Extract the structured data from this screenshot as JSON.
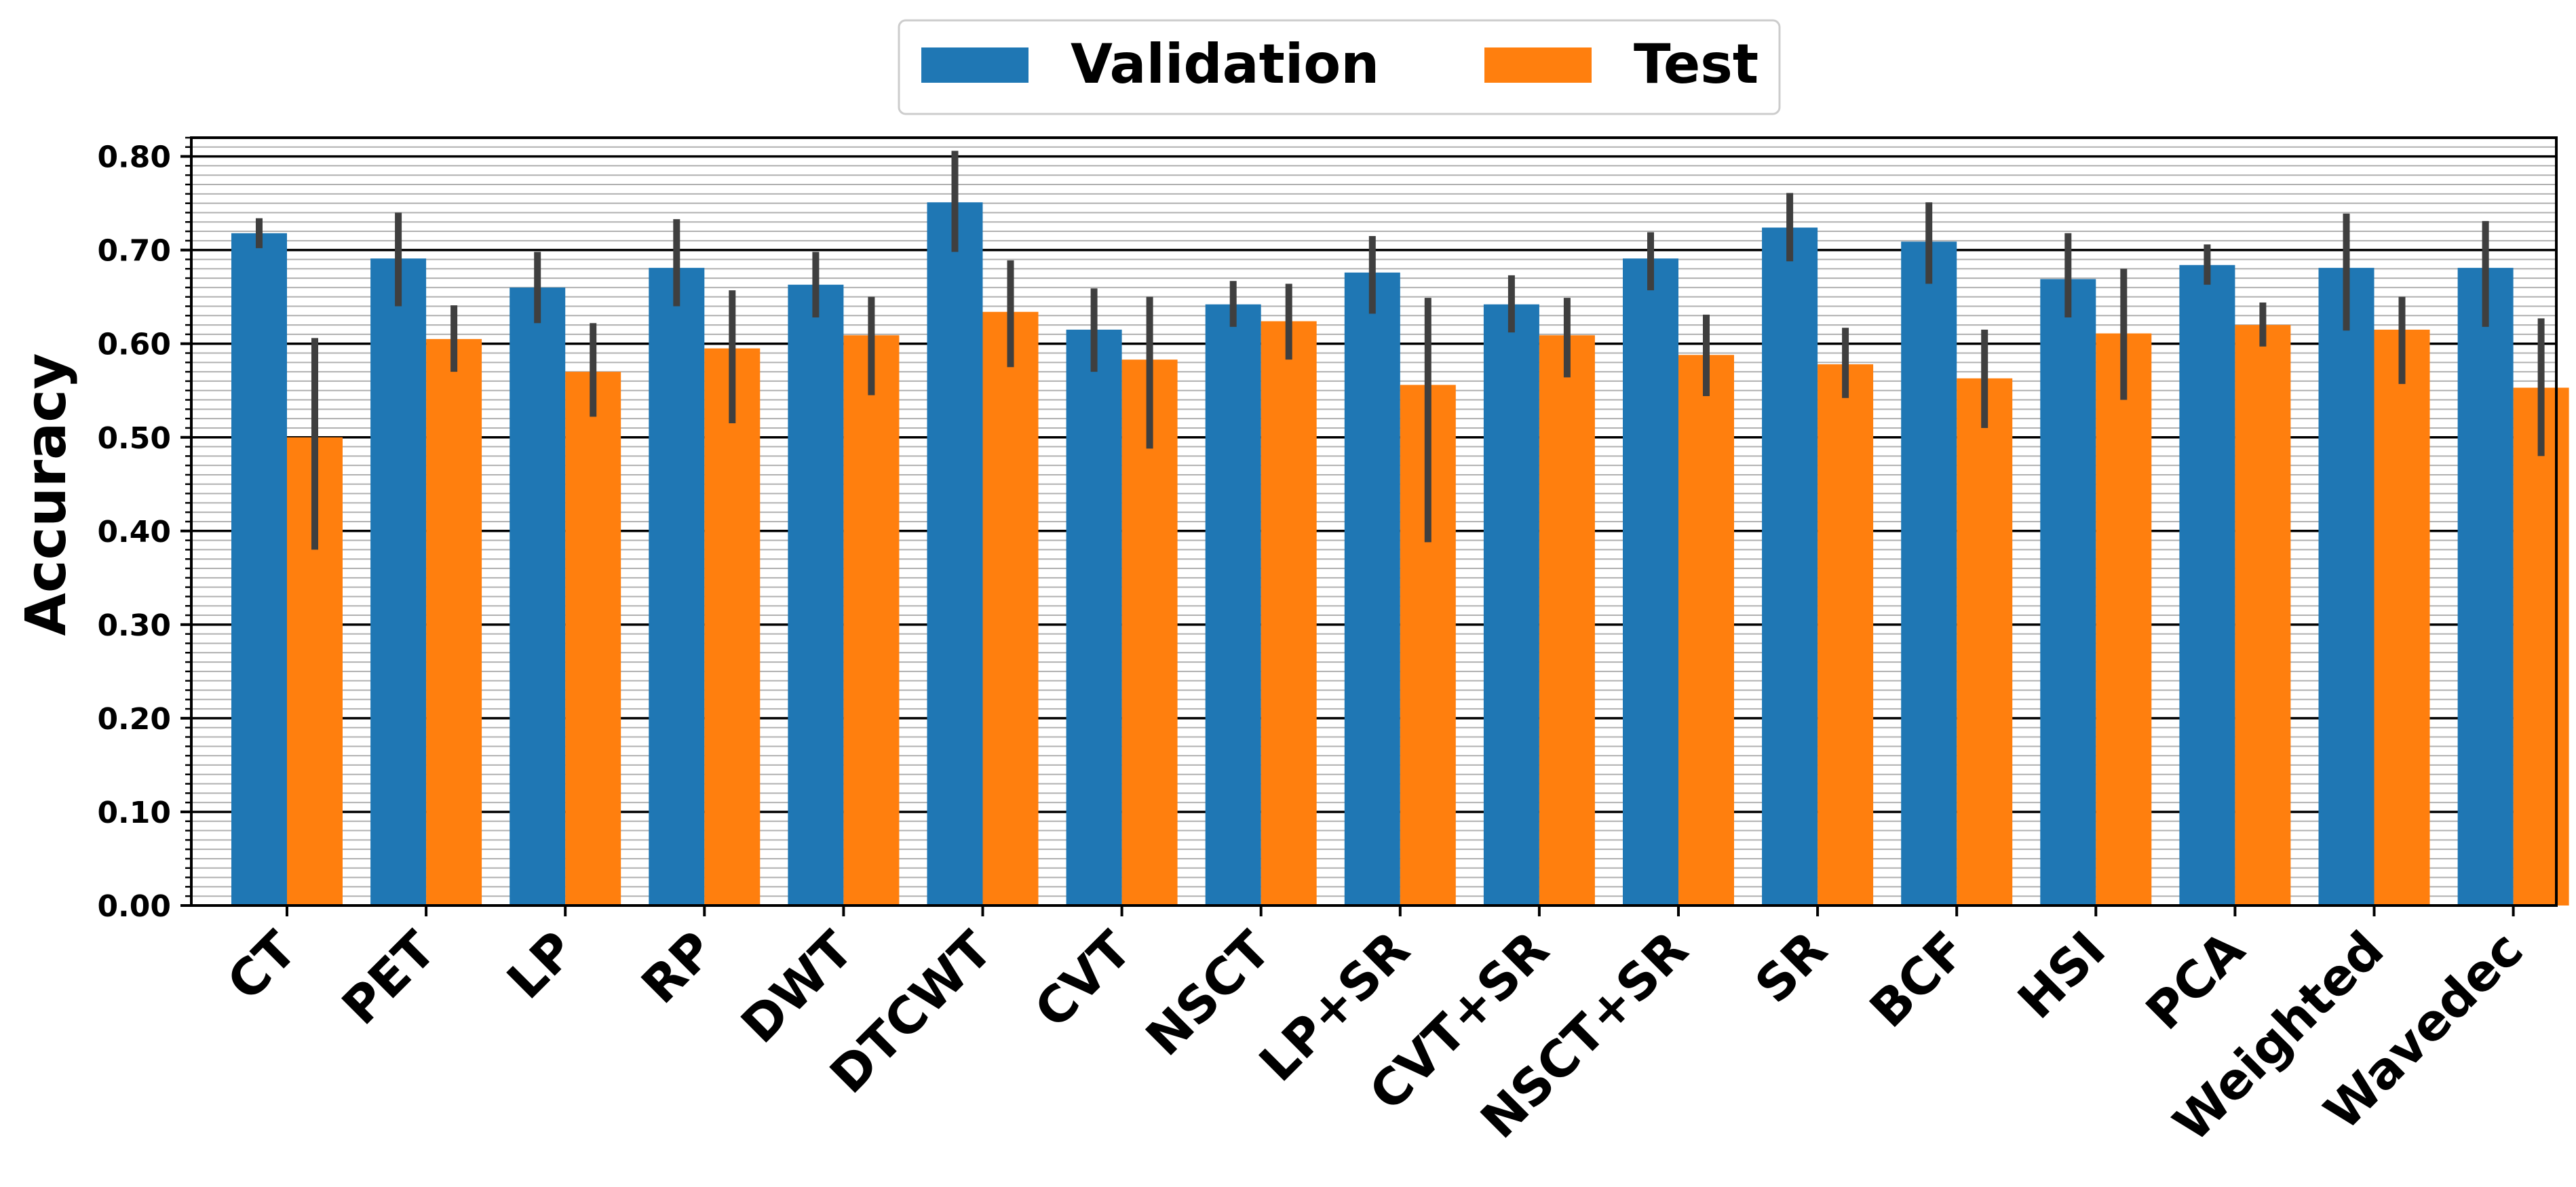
{
  "chart_data": {
    "type": "bar",
    "title": "",
    "xlabel": "",
    "ylabel": "Accuracy",
    "ylim": [
      0,
      0.82
    ],
    "yticks": [
      "0.00",
      "0.10",
      "0.20",
      "0.30",
      "0.40",
      "0.50",
      "0.60",
      "0.70",
      "0.80"
    ],
    "grid": "horizontal major and minor",
    "legend_position": "top-center",
    "categories": [
      "CT",
      "PET",
      "LP",
      "RP",
      "DWT",
      "DTCWT",
      "CVT",
      "NSCT",
      "LP+SR",
      "CVT+SR",
      "NSCT+SR",
      "SR",
      "BCF",
      "HSI",
      "PCA",
      "Weighted",
      "Wavedec"
    ],
    "series": [
      {
        "name": "Validation",
        "color": "#1f77b4",
        "values": [
          0.718,
          0.691,
          0.66,
          0.681,
          0.663,
          0.751,
          0.615,
          0.642,
          0.676,
          0.642,
          0.691,
          0.724,
          0.709,
          0.669,
          0.684,
          0.681,
          0.681
        ],
        "err_low": [
          0.702,
          0.64,
          0.622,
          0.64,
          0.628,
          0.698,
          0.57,
          0.618,
          0.632,
          0.612,
          0.657,
          0.688,
          0.664,
          0.628,
          0.663,
          0.614,
          0.618
        ],
        "err_high": [
          0.734,
          0.74,
          0.698,
          0.733,
          0.698,
          0.806,
          0.659,
          0.667,
          0.715,
          0.673,
          0.719,
          0.761,
          0.751,
          0.718,
          0.706,
          0.739,
          0.731
        ]
      },
      {
        "name": "Test",
        "color": "#ff7f0e",
        "values": [
          0.5,
          0.605,
          0.57,
          0.595,
          0.609,
          0.634,
          0.583,
          0.624,
          0.556,
          0.609,
          0.588,
          0.578,
          0.563,
          0.611,
          0.62,
          0.615,
          0.553
        ],
        "err_low": [
          0.38,
          0.57,
          0.522,
          0.515,
          0.545,
          0.575,
          0.488,
          0.583,
          0.388,
          0.564,
          0.544,
          0.542,
          0.51,
          0.54,
          0.597,
          0.557,
          0.48
        ],
        "err_high": [
          0.606,
          0.641,
          0.622,
          0.657,
          0.65,
          0.689,
          0.65,
          0.664,
          0.649,
          0.649,
          0.631,
          0.617,
          0.615,
          0.68,
          0.644,
          0.65,
          0.627
        ]
      }
    ],
    "errorbar_color": "#3f3f3f"
  }
}
